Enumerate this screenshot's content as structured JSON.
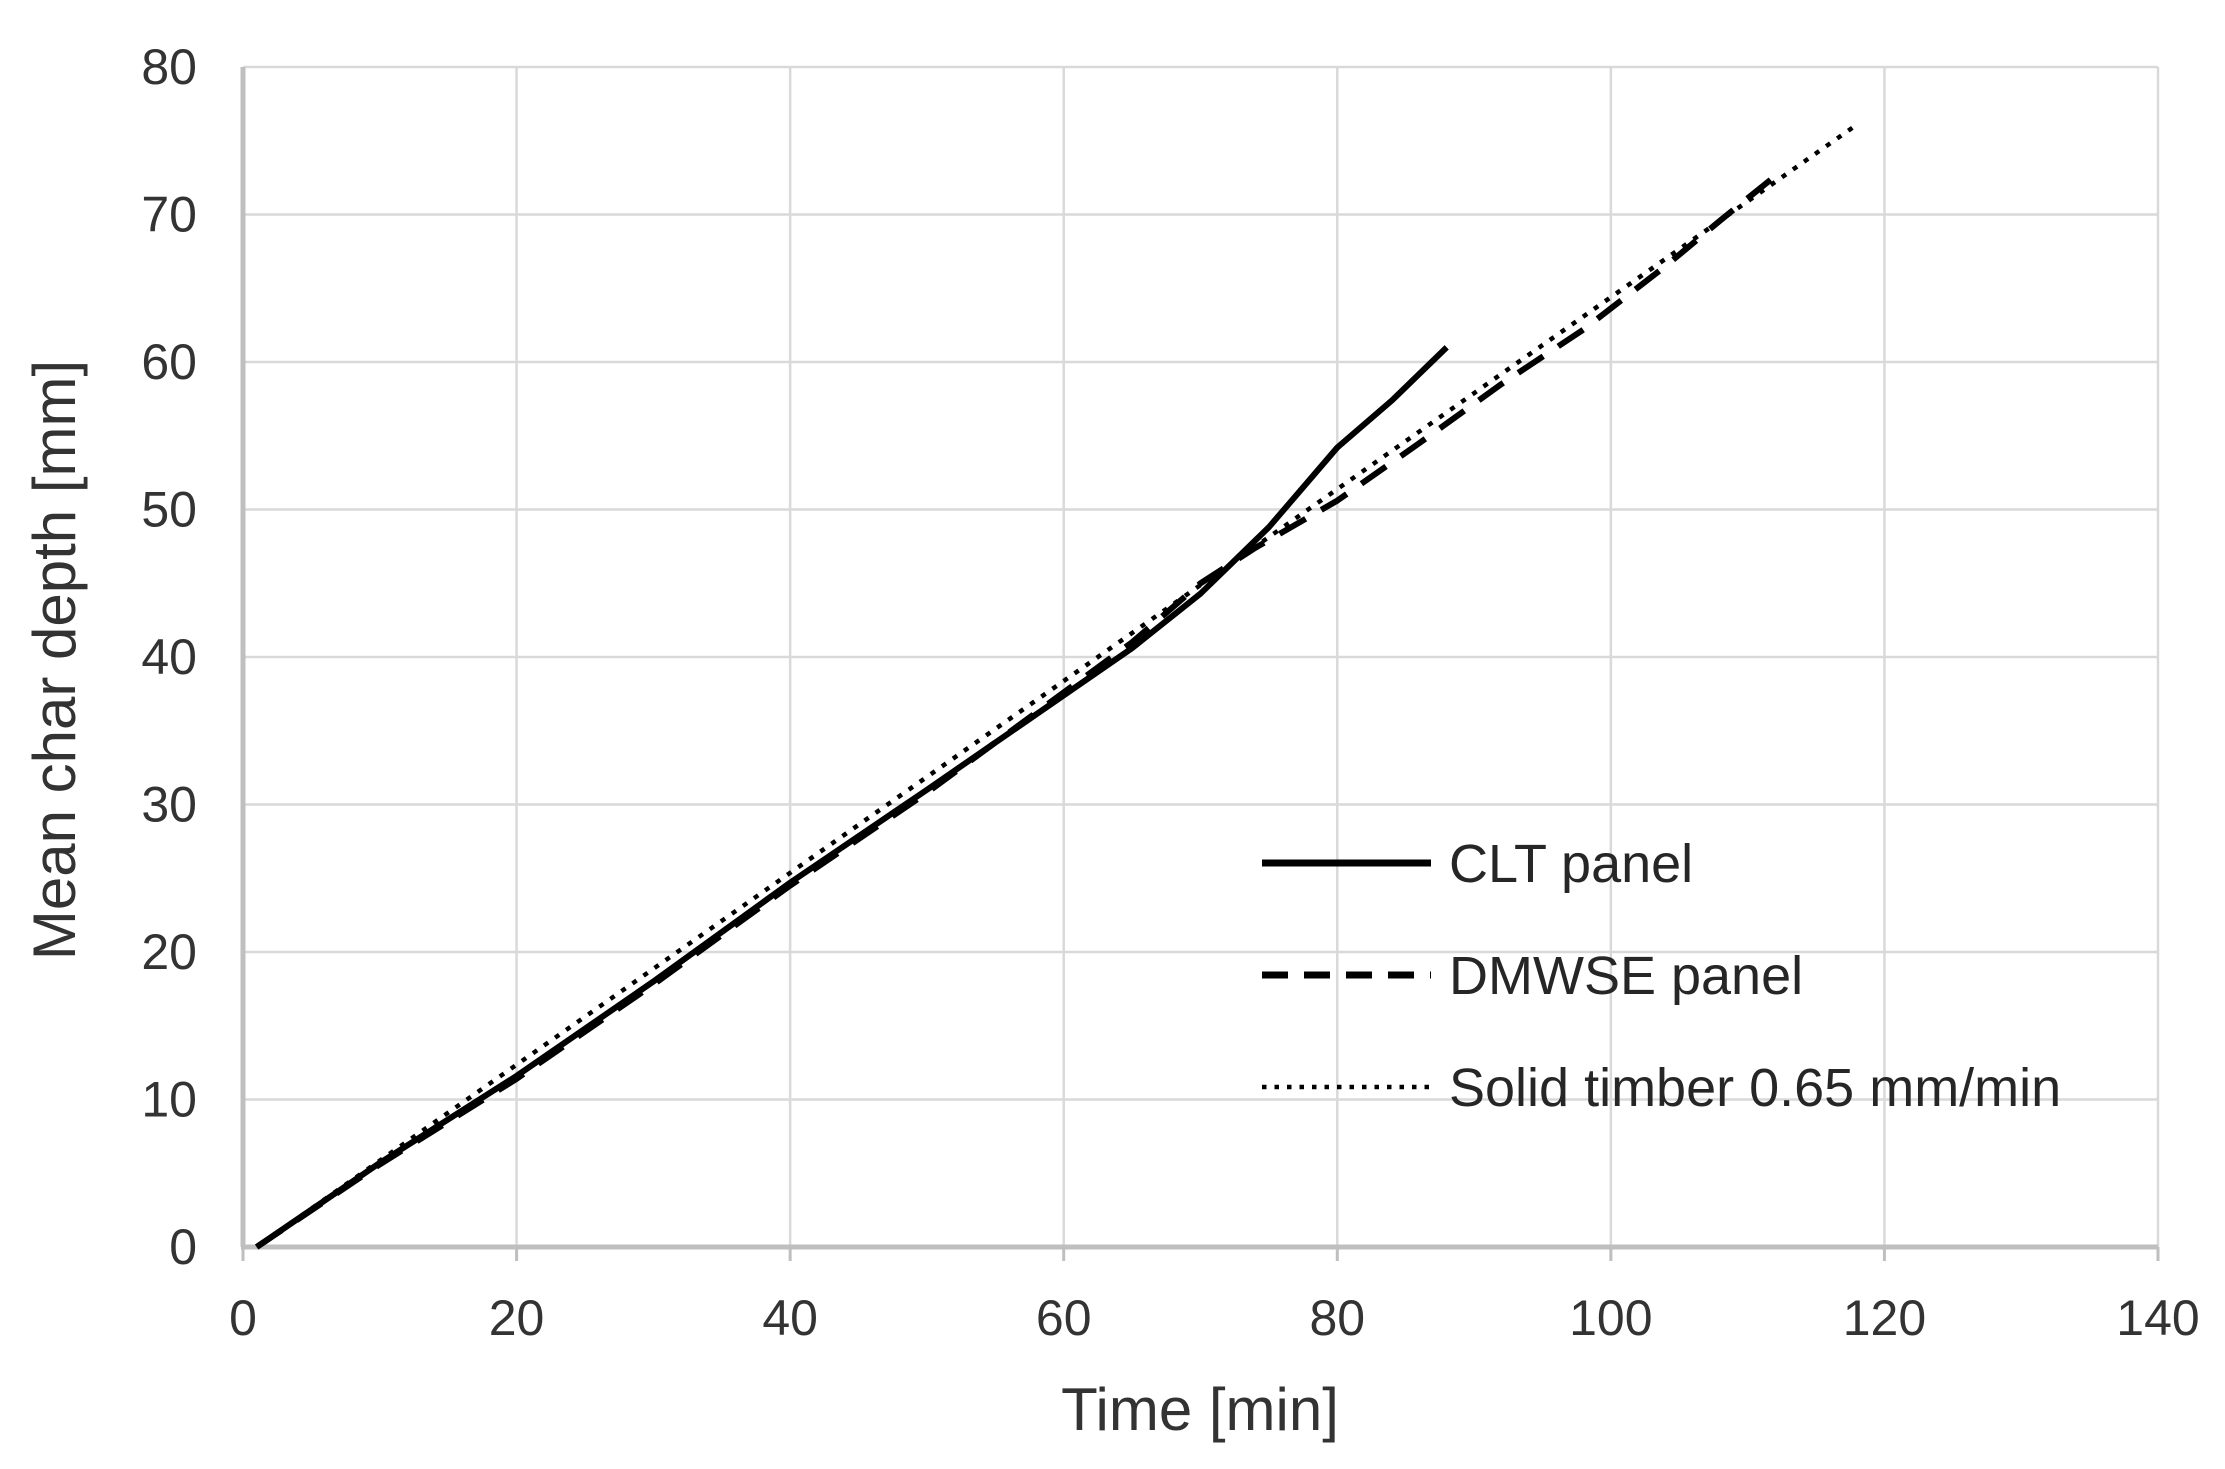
{
  "colors": {
    "background": "#ffffff",
    "line": "#000000",
    "gridline": "#d9d9d9",
    "axis": "#bfbfbf",
    "text": "#333333"
  },
  "chart_data": {
    "type": "line",
    "title": "",
    "xlabel": "Time [min]",
    "ylabel": "Mean char depth [mm]",
    "xlim": [
      0,
      140
    ],
    "ylim": [
      0,
      80
    ],
    "xticks": [
      0,
      20,
      40,
      60,
      80,
      100,
      120,
      140
    ],
    "yticks": [
      0,
      10,
      20,
      30,
      40,
      50,
      60,
      70,
      80
    ],
    "grid": true,
    "legend_position": "inside-right-middle",
    "series": [
      {
        "name": "CLT panel",
        "style": "solid",
        "color": "#000000",
        "points": [
          [
            1,
            0
          ],
          [
            10,
            5.7
          ],
          [
            20,
            11.6
          ],
          [
            30,
            18.0
          ],
          [
            40,
            24.7
          ],
          [
            50,
            31.0
          ],
          [
            60,
            37.4
          ],
          [
            65,
            40.6
          ],
          [
            70,
            44.3
          ],
          [
            75,
            48.8
          ],
          [
            80,
            54.2
          ],
          [
            84,
            57.4
          ],
          [
            88,
            61.0
          ]
        ]
      },
      {
        "name": "DMWSE panel",
        "style": "dashed",
        "color": "#000000",
        "points": [
          [
            1,
            0
          ],
          [
            10,
            5.6
          ],
          [
            20,
            11.4
          ],
          [
            30,
            17.8
          ],
          [
            40,
            24.5
          ],
          [
            50,
            30.8
          ],
          [
            60,
            37.6
          ],
          [
            65,
            41.0
          ],
          [
            70,
            45.0
          ],
          [
            74,
            47.4
          ],
          [
            80,
            50.6
          ],
          [
            86,
            54.5
          ],
          [
            92,
            58.5
          ],
          [
            98,
            62.2
          ],
          [
            104,
            66.5
          ],
          [
            108,
            69.6
          ],
          [
            112,
            72.6
          ]
        ]
      },
      {
        "name": "Solid timber 0.65 mm/min",
        "style": "dotted",
        "color": "#000000",
        "points": [
          [
            1,
            0
          ],
          [
            118,
            76.1
          ]
        ]
      }
    ]
  }
}
